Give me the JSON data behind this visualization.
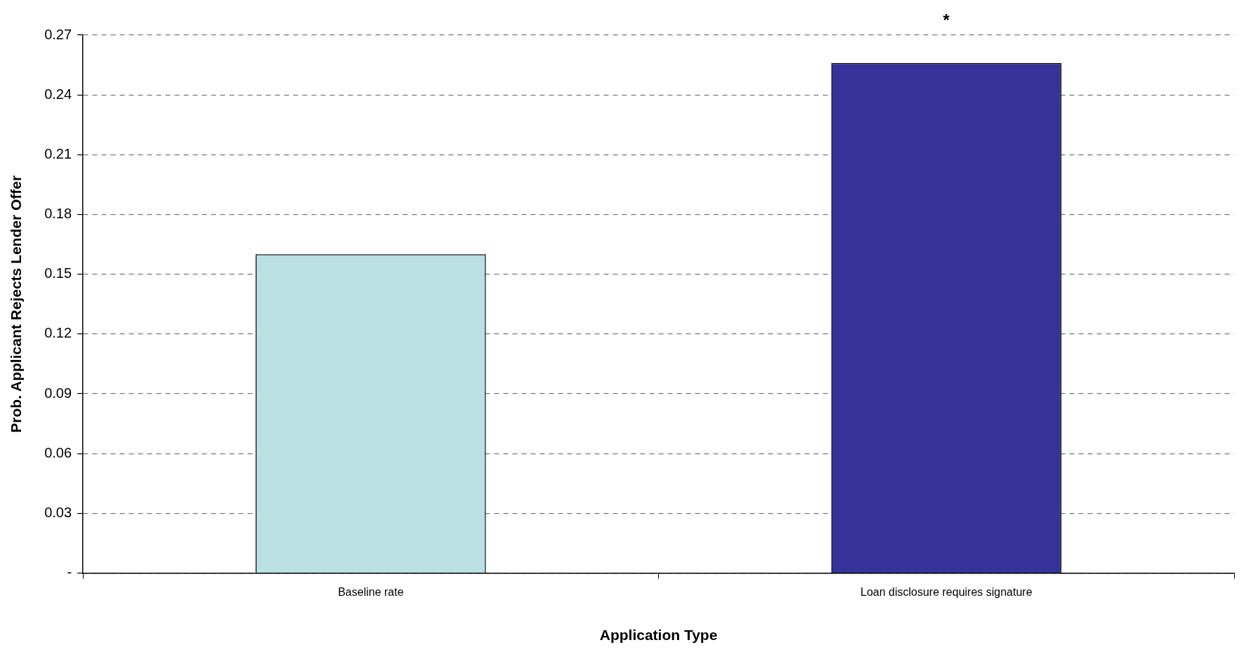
{
  "chart_data": {
    "type": "bar",
    "xlabel": "Application Type",
    "ylabel": "Prob. Applicant Rejects Lender Offer",
    "categories": [
      "Baseline rate",
      "Loan disclosure requires signature"
    ],
    "values": [
      0.16,
      0.256
    ],
    "colors": [
      "#bae0e2",
      "#333399"
    ],
    "ylim": [
      0,
      0.27
    ],
    "yticks": [
      {
        "value": 0,
        "label": "-"
      },
      0.03,
      0.06,
      0.09,
      0.12,
      0.15,
      0.18,
      0.21,
      0.24,
      0.27
    ],
    "grid": "y",
    "legend": false,
    "annotations": [
      "*"
    ]
  }
}
